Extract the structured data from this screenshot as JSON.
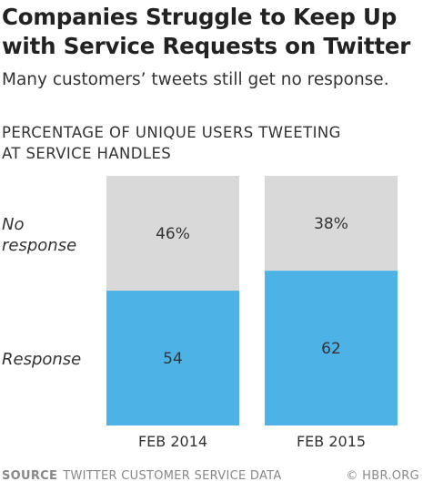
{
  "header": {
    "title_line1": "Companies Struggle to Keep Up",
    "title_line2": "with Service Requests on Twitter",
    "subtitle": "Many customers’ tweets still get no response."
  },
  "chart_heading": {
    "line1": "PERCENTAGE OF UNIQUE USERS TWEETING",
    "line2": "AT SERVICE HANDLES"
  },
  "footer": {
    "source_label": "SOURCE",
    "source_text": "TWITTER CUSTOMER SERVICE DATA",
    "credit": "© HBR.ORG"
  },
  "colors": {
    "no_response": "#d9d9d9",
    "response": "#4db3e6",
    "text": "#333333"
  },
  "chart_data": {
    "type": "bar",
    "stacked": true,
    "categories": [
      "FEB 2014",
      "FEB 2015"
    ],
    "series": [
      {
        "name": "Response",
        "values": [
          54,
          62
        ],
        "labels": [
          "54",
          "62"
        ]
      },
      {
        "name": "No response",
        "values": [
          46,
          38
        ],
        "labels": [
          "46%",
          "38%"
        ]
      }
    ],
    "ylim": [
      0,
      100
    ],
    "grid": false,
    "legend": "left, inline with segments"
  }
}
